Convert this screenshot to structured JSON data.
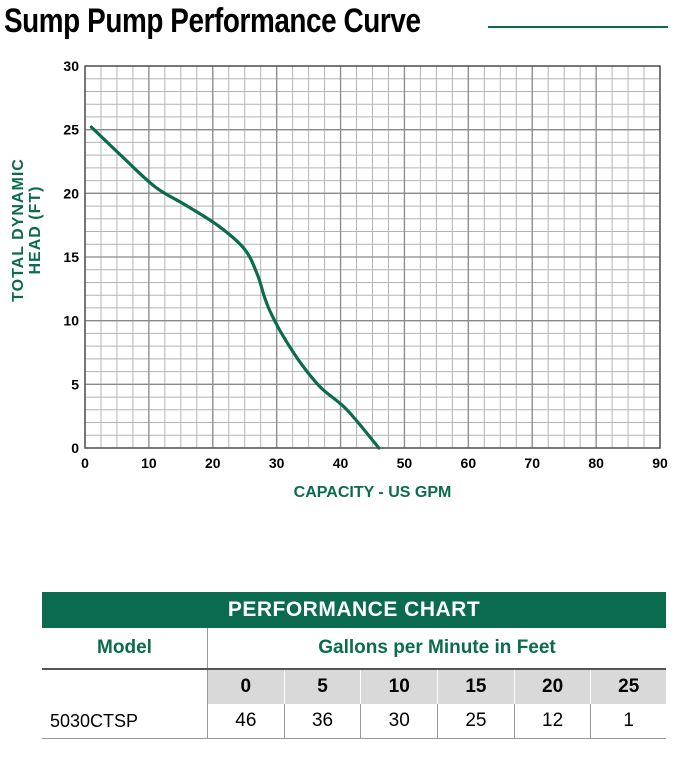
{
  "page_title": "Sump Pump Performance Curve",
  "chart_data": {
    "type": "line",
    "xlabel": "CAPACITY - US GPM",
    "ylabel_lines": [
      "TOTAL DYNAMIC",
      "HEAD (FT)"
    ],
    "xlim": [
      0,
      90
    ],
    "ylim": [
      0,
      30
    ],
    "x_ticks": [
      0,
      10,
      20,
      30,
      40,
      50,
      60,
      70,
      80,
      90
    ],
    "y_ticks": [
      0,
      5,
      10,
      15,
      20,
      25,
      30
    ],
    "grid": true,
    "line_color": "#0b6b4e",
    "grid_color": "#b4b4b4",
    "series": [
      {
        "x": [
          1,
          6,
          11,
          16,
          21,
          25,
          27,
          28,
          29,
          31,
          34,
          37,
          41,
          46
        ],
        "values": [
          25.2,
          22.8,
          20.5,
          19.0,
          17.4,
          15.6,
          13.6,
          12.0,
          10.7,
          8.8,
          6.5,
          4.7,
          3.0,
          0
        ]
      }
    ]
  },
  "performance_chart": {
    "title": "PERFORMANCE CHART",
    "model_header": "Model",
    "gpm_header": "Gallons per Minute in Feet",
    "feet": [
      "0",
      "5",
      "10",
      "15",
      "20",
      "25"
    ],
    "rows": [
      {
        "model": "5030CTSP",
        "values": [
          "46",
          "36",
          "30",
          "25",
          "12",
          "1"
        ]
      }
    ]
  },
  "colors": {
    "accent": "#0b6b4e",
    "header_gray": "#d9d9d9"
  }
}
